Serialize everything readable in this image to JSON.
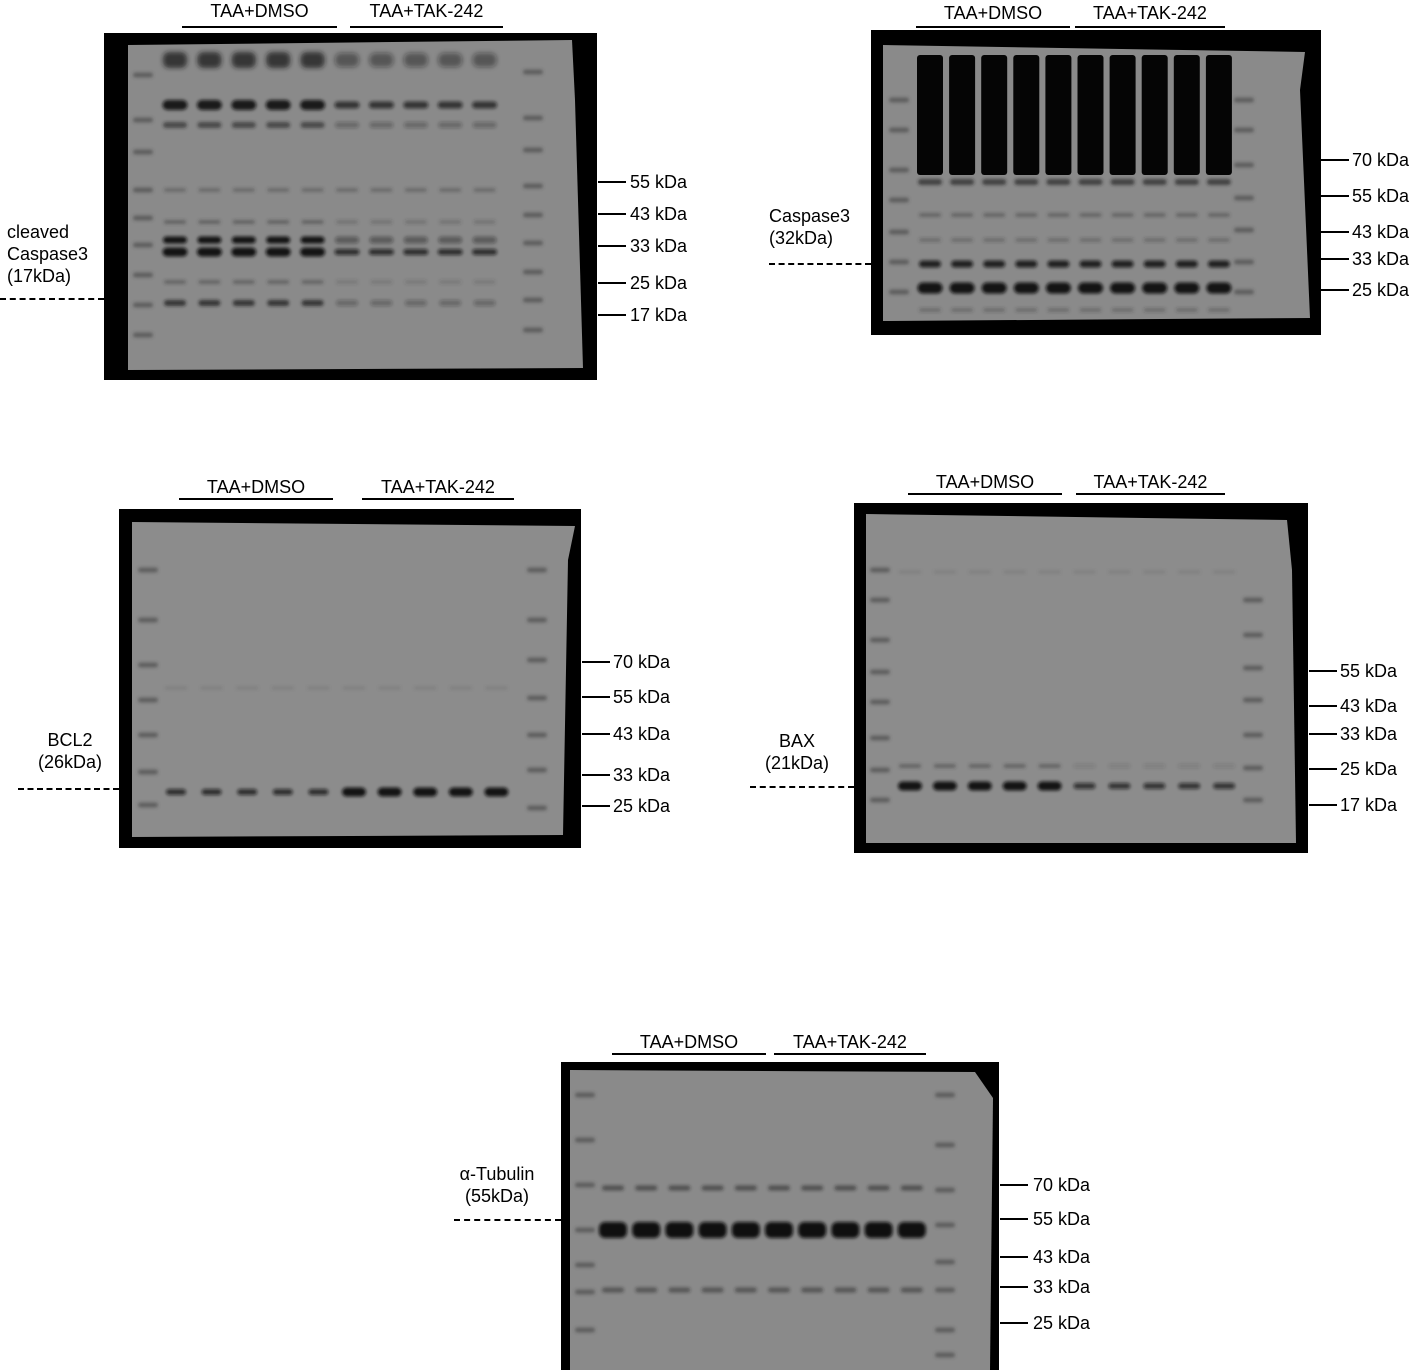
{
  "group_labels": {
    "control": "TAA+DMSO",
    "treatment": "TAA+TAK-242"
  },
  "panels": [
    {
      "id": "cleaved-caspase3",
      "protein_line1": "cleaved",
      "protein_line2": "Caspase3",
      "protein_size": "(17kDa)",
      "markers": [
        "55 kDa",
        "43 kDa",
        "33 kDa",
        "25 kDa",
        "17 kDa"
      ]
    },
    {
      "id": "caspase3",
      "protein": "Caspase3",
      "protein_size": "(32kDa)",
      "markers": [
        "70 kDa",
        "55 kDa",
        "43 kDa",
        "33 kDa",
        "25 kDa"
      ]
    },
    {
      "id": "bcl2",
      "protein": "BCL2",
      "protein_size": "(26kDa)",
      "markers": [
        "70 kDa",
        "55 kDa",
        "43 kDa",
        "33 kDa",
        "25 kDa"
      ]
    },
    {
      "id": "bax",
      "protein": "BAX",
      "protein_size": "(21kDa)",
      "markers": [
        "55 kDa",
        "43 kDa",
        "33 kDa",
        "25 kDa",
        "17 kDa"
      ]
    },
    {
      "id": "alpha-tubulin",
      "protein": "α-Tubulin",
      "protein_size": "(55kDa)",
      "markers": [
        "70 kDa",
        "55 kDa",
        "43 kDa",
        "33 kDa",
        "25 kDa"
      ]
    }
  ],
  "colors": {
    "membrane": "#8a8a8a",
    "frame": "#050505",
    "band": "#1a1a1a"
  }
}
